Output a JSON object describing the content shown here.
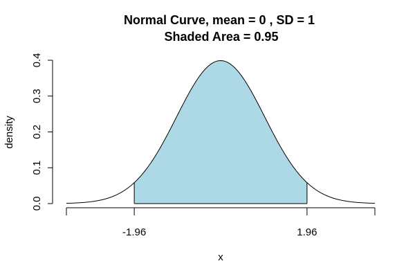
{
  "chart_data": {
    "type": "area",
    "title_line1": "Normal Curve, mean =  0 , SD =  1",
    "title_line2": "Shaded Area =  0.95",
    "xlabel": "x",
    "ylabel": "density",
    "mean": 0,
    "sd": 1,
    "shaded_area": 0.95,
    "shade_from": -1.96,
    "shade_to": 1.96,
    "xlim": [
      -3.5,
      3.5
    ],
    "ylim": [
      0,
      0.4
    ],
    "x_ticks": [
      -3.5,
      -1.96,
      1.96,
      3.5
    ],
    "x_tick_labels": [
      "",
      "-1.96",
      "1.96",
      ""
    ],
    "y_ticks": [
      0.0,
      0.1,
      0.2,
      0.3,
      0.4
    ],
    "y_tick_labels": [
      "0.0",
      "0.1",
      "0.2",
      "0.3",
      "0.4"
    ],
    "shade_color": "#add8e6",
    "line_color": "#000000",
    "grid": false
  }
}
